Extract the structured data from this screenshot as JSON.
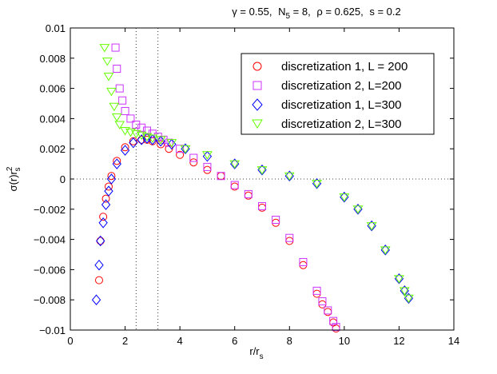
{
  "chart_data": {
    "type": "scatter",
    "title_parts": {
      "gamma": "γ = 0.55,",
      "n5_base": "N",
      "n5_sub": "5",
      "n5_val": " = 8,",
      "rho": "ρ = 0.625,",
      "s": "s = 0.2"
    },
    "xlabel_base": "r/r",
    "xlabel_sub": "s",
    "ylabel_base": "σ(r)r",
    "ylabel_sup": "2",
    "ylabel_sub": "s",
    "xlim": [
      0,
      14
    ],
    "ylim": [
      -0.01,
      0.01
    ],
    "xticks": [
      0,
      2,
      4,
      6,
      8,
      10,
      12,
      14
    ],
    "xtick_labels": [
      "0",
      "2",
      "4",
      "6",
      "8",
      "10",
      "12",
      "14"
    ],
    "yticks": [
      -0.01,
      -0.008,
      -0.006,
      -0.004,
      -0.002,
      0,
      0.002,
      0.004,
      0.006,
      0.008,
      0.01
    ],
    "ytick_labels": [
      "−0.01",
      "−0.008",
      "−0.006",
      "−0.004",
      "−0.002",
      "0",
      "0.002",
      "0.004",
      "0.006",
      "0.008",
      "0.01"
    ],
    "reference_lines": {
      "horizontal_y": 0,
      "vertical_x": [
        2.4,
        3.2
      ]
    },
    "legend_position": "top-right",
    "series": [
      {
        "name": "discretization 1,  L = 200",
        "marker": "circle",
        "color": "#ff0000",
        "x": [
          1.05,
          1.1,
          1.2,
          1.3,
          1.4,
          1.5,
          1.7,
          2.0,
          2.3,
          2.6,
          2.8,
          3.0,
          3.3,
          3.6,
          4.0,
          4.5,
          5.0,
          5.5,
          6.0,
          6.5,
          7.0,
          7.5,
          8.0,
          8.5,
          9.0,
          9.2,
          9.4,
          9.6,
          9.7
        ],
        "y": [
          -0.0067,
          -0.0041,
          -0.0025,
          -0.0013,
          -0.0005,
          0.0002,
          0.0012,
          0.0021,
          0.0025,
          0.0026,
          0.0026,
          0.0025,
          0.0023,
          0.002,
          0.0016,
          0.0011,
          0.0006,
          0.0002,
          -0.0005,
          -0.0011,
          -0.0019,
          -0.0029,
          -0.0041,
          -0.0057,
          -0.0076,
          -0.0083,
          -0.0088,
          -0.0095,
          -0.0099
        ]
      },
      {
        "name": "discretization 2, L=200",
        "marker": "square",
        "color": "#cc33ff",
        "x": [
          1.65,
          1.7,
          1.8,
          1.9,
          2.0,
          2.2,
          2.4,
          2.6,
          2.8,
          3.0,
          3.2,
          3.4,
          3.6,
          4.0,
          4.5,
          5.0,
          5.5,
          6.0,
          6.5,
          7.0,
          7.5,
          8.0,
          8.5,
          9.0,
          9.2,
          9.4,
          9.6,
          9.7
        ],
        "y": [
          0.0087,
          0.0073,
          0.006,
          0.0052,
          0.0045,
          0.004,
          0.0036,
          0.0034,
          0.0032,
          0.003,
          0.0028,
          0.0026,
          0.0024,
          0.002,
          0.0014,
          0.0008,
          0.0002,
          -0.0004,
          -0.001,
          -0.0018,
          -0.0027,
          -0.0039,
          -0.0055,
          -0.0074,
          -0.0081,
          -0.0087,
          -0.0094,
          -0.0098
        ]
      },
      {
        "name": "discretization 1, L=300",
        "marker": "diamond",
        "color": "#0000ff",
        "x": [
          0.95,
          1.05,
          1.1,
          1.2,
          1.3,
          1.4,
          1.5,
          1.7,
          2.0,
          2.3,
          2.6,
          2.8,
          3.0,
          3.3,
          3.7,
          4.2,
          5.0,
          6.0,
          7.0,
          8.0,
          9.0,
          10.0,
          10.5,
          11.0,
          11.5,
          12.0,
          12.2,
          12.35
        ],
        "y": [
          -0.008,
          -0.0057,
          -0.0041,
          -0.0029,
          -0.0017,
          -0.0008,
          0.0,
          0.001,
          0.0019,
          0.0024,
          0.0026,
          0.0027,
          0.0026,
          0.0025,
          0.0023,
          0.002,
          0.0015,
          0.001,
          0.0006,
          0.0002,
          -0.0003,
          -0.0012,
          -0.002,
          -0.0031,
          -0.0047,
          -0.0066,
          -0.0074,
          -0.0079
        ]
      },
      {
        "name": "discretization 2, L=300",
        "marker": "triangle-down",
        "color": "#66ff00",
        "x": [
          1.25,
          1.35,
          1.4,
          1.5,
          1.6,
          1.7,
          1.8,
          2.0,
          2.2,
          2.4,
          2.6,
          2.8,
          3.0,
          3.3,
          3.7,
          4.2,
          5.0,
          6.0,
          7.0,
          8.0,
          9.0,
          10.0,
          10.5,
          11.0,
          11.5,
          12.0,
          12.2,
          12.35
        ],
        "y": [
          0.0087,
          0.0078,
          0.0068,
          0.0058,
          0.0048,
          0.0041,
          0.0036,
          0.0032,
          0.0031,
          0.003,
          0.0029,
          0.0028,
          0.0027,
          0.0026,
          0.0024,
          0.002,
          0.0016,
          0.001,
          0.0006,
          0.0002,
          -0.0003,
          -0.0012,
          -0.002,
          -0.0031,
          -0.0047,
          -0.0066,
          -0.0074,
          -0.0079
        ]
      }
    ]
  }
}
